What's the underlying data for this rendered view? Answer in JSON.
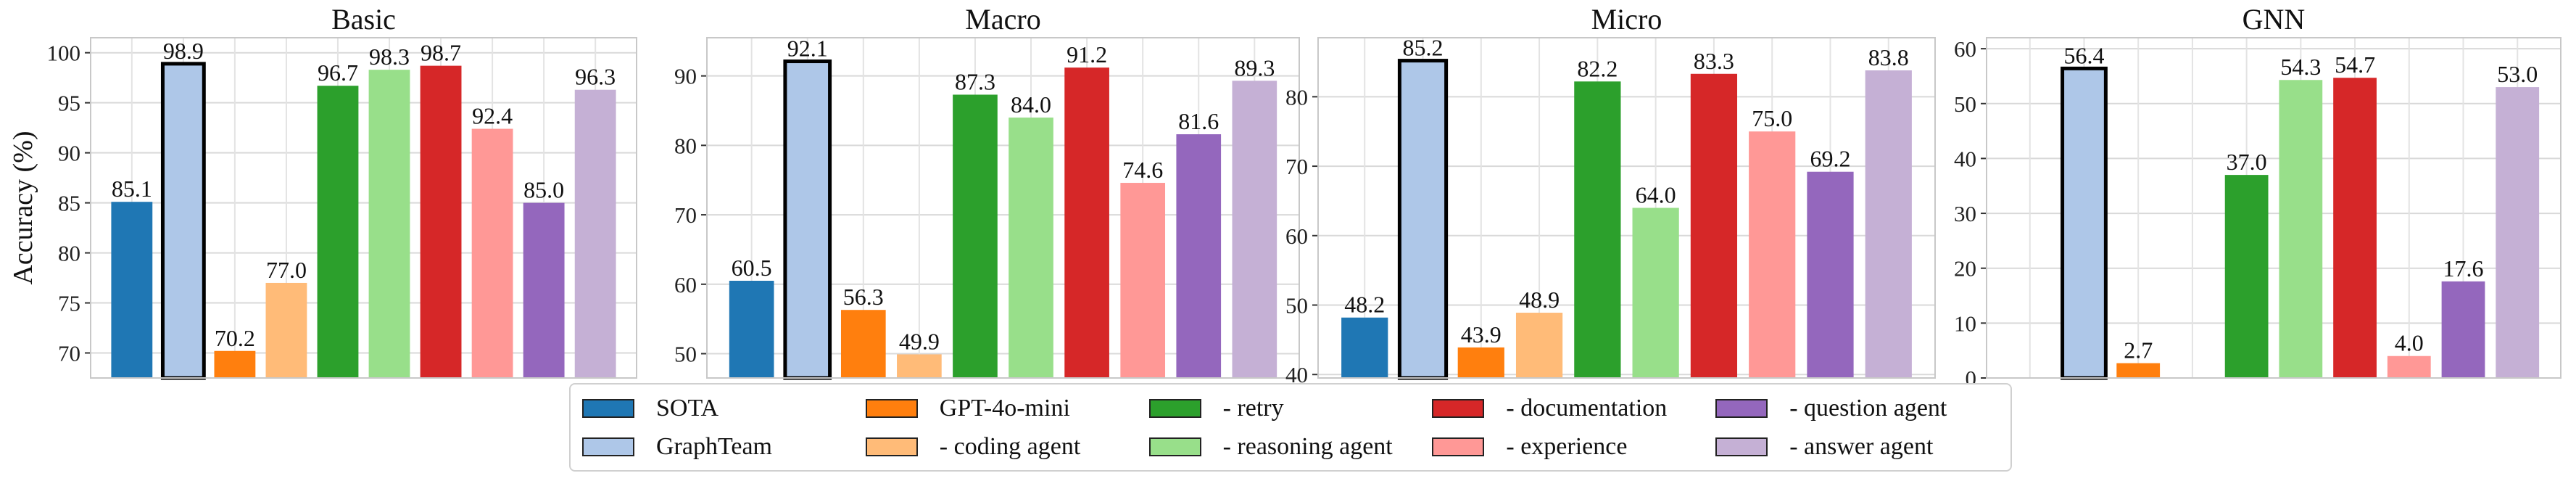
{
  "chart_data": {
    "type": "bar",
    "ylabel": "Accuracy (%)",
    "grid": true,
    "series_names": [
      "SOTA",
      "GraphTeam",
      "GPT-4o-mini",
      "- coding agent",
      "- retry",
      "- reasoning agent",
      "- documentation",
      "- experience",
      "- question agent",
      "- answer agent"
    ],
    "series_colors": [
      "#1f77b4",
      "#aec7e8",
      "#ff7f0e",
      "#ffbb78",
      "#2ca02c",
      "#98df8a",
      "#d62728",
      "#ff9896",
      "#9467bd",
      "#c5b0d5"
    ],
    "highlight_series": "GraphTeam",
    "panels": [
      {
        "title": "Basic",
        "ylim": [
          67.5,
          101.5
        ],
        "yticks": [
          70,
          75,
          80,
          85,
          90,
          95,
          100
        ],
        "values": [
          85.1,
          98.9,
          70.2,
          77.0,
          96.7,
          98.3,
          98.7,
          92.4,
          85.0,
          96.3
        ],
        "labels": [
          "85.1",
          "98.9",
          "70.2",
          "77.0",
          "96.7",
          "98.3",
          "98.7",
          "92.4",
          "85.0",
          "96.3"
        ]
      },
      {
        "title": "Macro",
        "ylim": [
          46.5,
          95.5
        ],
        "yticks": [
          50,
          60,
          70,
          80,
          90
        ],
        "values": [
          60.5,
          92.1,
          56.3,
          49.9,
          87.3,
          84.0,
          91.2,
          74.6,
          81.6,
          89.3
        ],
        "labels": [
          "60.5",
          "92.1",
          "56.3",
          "49.9",
          "87.3",
          "84.0",
          "91.2",
          "74.6",
          "81.6",
          "89.3"
        ]
      },
      {
        "title": "Micro",
        "ylim": [
          39.5,
          88.5
        ],
        "yticks": [
          40,
          50,
          60,
          70,
          80
        ],
        "values": [
          48.2,
          85.2,
          43.9,
          48.9,
          82.2,
          64.0,
          83.3,
          75.0,
          69.2,
          83.8
        ],
        "labels": [
          "48.2",
          "85.2",
          "43.9",
          "48.9",
          "82.2",
          "64.0",
          "83.3",
          "75.0",
          "69.2",
          "83.8"
        ]
      },
      {
        "title": "GNN",
        "ylim": [
          0,
          62
        ],
        "yticks": [
          0,
          10,
          20,
          30,
          40,
          50,
          60
        ],
        "values": [
          null,
          56.4,
          2.7,
          null,
          37.0,
          54.3,
          54.7,
          4.0,
          17.6,
          53.0
        ],
        "labels": [
          "",
          "56.4",
          "2.7",
          "",
          "37.0",
          "54.3",
          "54.7",
          "4.0",
          "17.6",
          "53.0"
        ]
      }
    ]
  }
}
